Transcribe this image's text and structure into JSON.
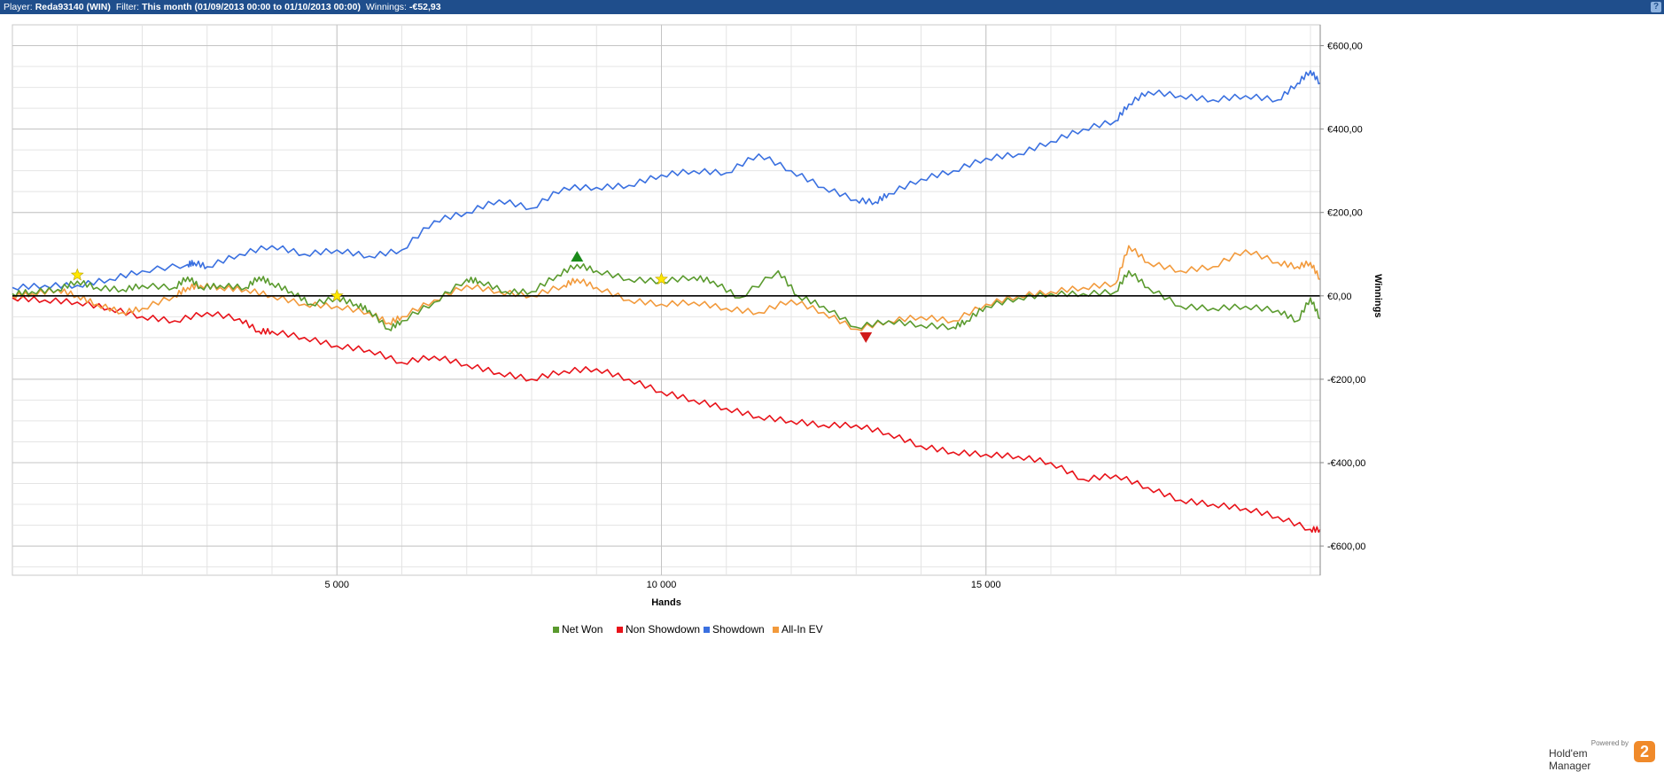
{
  "header": {
    "player_label": "Player:",
    "player_value": "Reda93140 (WIN)",
    "filter_label": "Filter:",
    "filter_value": "This month (01/09/2013 00:00 to 01/10/2013 00:00)",
    "winnings_label": "Winnings:",
    "winnings_value": "-€52,93",
    "help_icon": "?"
  },
  "brand": {
    "powered_by": "Powered by",
    "name": "Hold'em Manager",
    "logo_glyph": "2"
  },
  "chart_data": {
    "type": "line",
    "xlabel": "Hands",
    "ylabel": "Winnings",
    "xlim": [
      0,
      20150
    ],
    "ylim": [
      -670,
      650
    ],
    "x_ticks": [
      5000,
      10000,
      15000
    ],
    "x_tick_labels": [
      "5 000",
      "10 000",
      "15 000"
    ],
    "y_ticks": [
      600,
      400,
      200,
      0,
      -200,
      -400,
      -600
    ],
    "y_tick_labels": [
      "€600,00",
      "€400,00",
      "€200,00",
      "€0,00",
      "-€200,00",
      "-€400,00",
      "-€600,00"
    ],
    "grid": true,
    "legend_position": "bottom-center",
    "series": [
      {
        "name": "Net Won",
        "color": "#5a9a2e",
        "x": [
          0,
          300,
          700,
          1000,
          1300,
          1700,
          2000,
          2500,
          2700,
          2900,
          3200,
          3600,
          3800,
          4000,
          4300,
          4600,
          5000,
          5300,
          5500,
          5800,
          6000,
          6500,
          7000,
          7200,
          7600,
          8000,
          8400,
          8700,
          9000,
          9500,
          10000,
          10500,
          10800,
          11200,
          11800,
          12100,
          12500,
          13000,
          13500,
          14000,
          14500,
          14700,
          15000,
          15500,
          16000,
          16500,
          17000,
          17200,
          17500,
          18000,
          18500,
          19000,
          19500,
          19800,
          20000,
          20150
        ],
        "y": [
          5,
          10,
          15,
          35,
          20,
          15,
          25,
          20,
          45,
          20,
          25,
          20,
          45,
          30,
          10,
          -20,
          -5,
          -20,
          -35,
          -80,
          -60,
          -15,
          40,
          35,
          10,
          10,
          50,
          75,
          60,
          40,
          35,
          45,
          35,
          -5,
          60,
          0,
          -25,
          -75,
          -60,
          -70,
          -75,
          -60,
          -25,
          -5,
          5,
          5,
          10,
          60,
          20,
          -25,
          -30,
          -25,
          -35,
          -60,
          -5,
          -55
        ]
      },
      {
        "name": "Non Showdown",
        "color": "#e8131a",
        "x": [
          0,
          500,
          1000,
          1500,
          2000,
          2500,
          3000,
          3500,
          3800,
          4000,
          4500,
          5000,
          5500,
          6000,
          6500,
          7000,
          7500,
          8000,
          8500,
          9000,
          9500,
          10000,
          10500,
          11000,
          11500,
          12000,
          12500,
          13000,
          13500,
          14000,
          14500,
          15000,
          15500,
          16000,
          16500,
          17000,
          17500,
          18000,
          18500,
          19000,
          19500,
          20000,
          20150
        ],
        "y": [
          -5,
          -10,
          -15,
          -30,
          -50,
          -60,
          -40,
          -55,
          -85,
          -85,
          -100,
          -120,
          -130,
          -160,
          -145,
          -165,
          -185,
          -200,
          -180,
          -175,
          -200,
          -230,
          -250,
          -270,
          -290,
          -300,
          -310,
          -310,
          -330,
          -360,
          -375,
          -380,
          -385,
          -400,
          -440,
          -430,
          -460,
          -490,
          -500,
          -510,
          -530,
          -560,
          -560
        ]
      },
      {
        "name": "Showdown",
        "color": "#3a70e0",
        "x": [
          0,
          500,
          1000,
          1500,
          2000,
          2700,
          2800,
          3000,
          3500,
          4000,
          4500,
          5000,
          5500,
          6000,
          6500,
          7000,
          7500,
          8000,
          8500,
          9000,
          9500,
          10000,
          10500,
          11000,
          11500,
          12000,
          12500,
          13000,
          13300,
          13500,
          14000,
          14500,
          15000,
          15500,
          16000,
          16500,
          17000,
          17200,
          17500,
          18000,
          18500,
          19000,
          19500,
          19800,
          20000,
          20150
        ],
        "y": [
          20,
          25,
          25,
          40,
          60,
          75,
          80,
          70,
          100,
          120,
          100,
          110,
          95,
          110,
          180,
          200,
          230,
          210,
          260,
          260,
          265,
          290,
          300,
          295,
          340,
          300,
          260,
          230,
          225,
          245,
          280,
          300,
          330,
          340,
          370,
          400,
          420,
          460,
          490,
          480,
          470,
          480,
          470,
          510,
          540,
          510
        ]
      },
      {
        "name": "All-In EV",
        "color": "#f29a3c",
        "x": [
          0,
          300,
          700,
          1000,
          1300,
          1700,
          2000,
          2500,
          2700,
          2900,
          3200,
          3600,
          4000,
          4500,
          5000,
          5500,
          5800,
          6000,
          6500,
          7000,
          7500,
          8000,
          8500,
          8700,
          9000,
          9500,
          10000,
          10500,
          11000,
          11500,
          12000,
          12500,
          13000,
          13500,
          14000,
          14500,
          15000,
          15500,
          16000,
          16500,
          17000,
          17200,
          17500,
          18000,
          18500,
          19000,
          19500,
          19800,
          20000,
          20150
        ],
        "y": [
          0,
          5,
          15,
          0,
          -20,
          -40,
          -30,
          0,
          20,
          25,
          20,
          15,
          0,
          -20,
          -25,
          -40,
          -65,
          -50,
          -10,
          25,
          10,
          0,
          25,
          40,
          20,
          -10,
          -20,
          -15,
          -30,
          -40,
          -10,
          -40,
          -80,
          -60,
          -50,
          -60,
          -20,
          0,
          10,
          20,
          30,
          120,
          80,
          60,
          70,
          110,
          80,
          70,
          80,
          40
        ]
      }
    ],
    "markers": [
      {
        "type": "star",
        "color": "#ffe600",
        "x": 1000,
        "y": 50
      },
      {
        "type": "star",
        "color": "#ffe600",
        "x": 5000,
        "y": 0
      },
      {
        "type": "star",
        "color": "#ffe600",
        "x": 10000,
        "y": 40
      },
      {
        "type": "triangle-up",
        "color": "#1a8a1a",
        "x": 8700,
        "y": 95
      },
      {
        "type": "triangle-down",
        "color": "#d01a1a",
        "x": 13150,
        "y": -100
      }
    ]
  }
}
